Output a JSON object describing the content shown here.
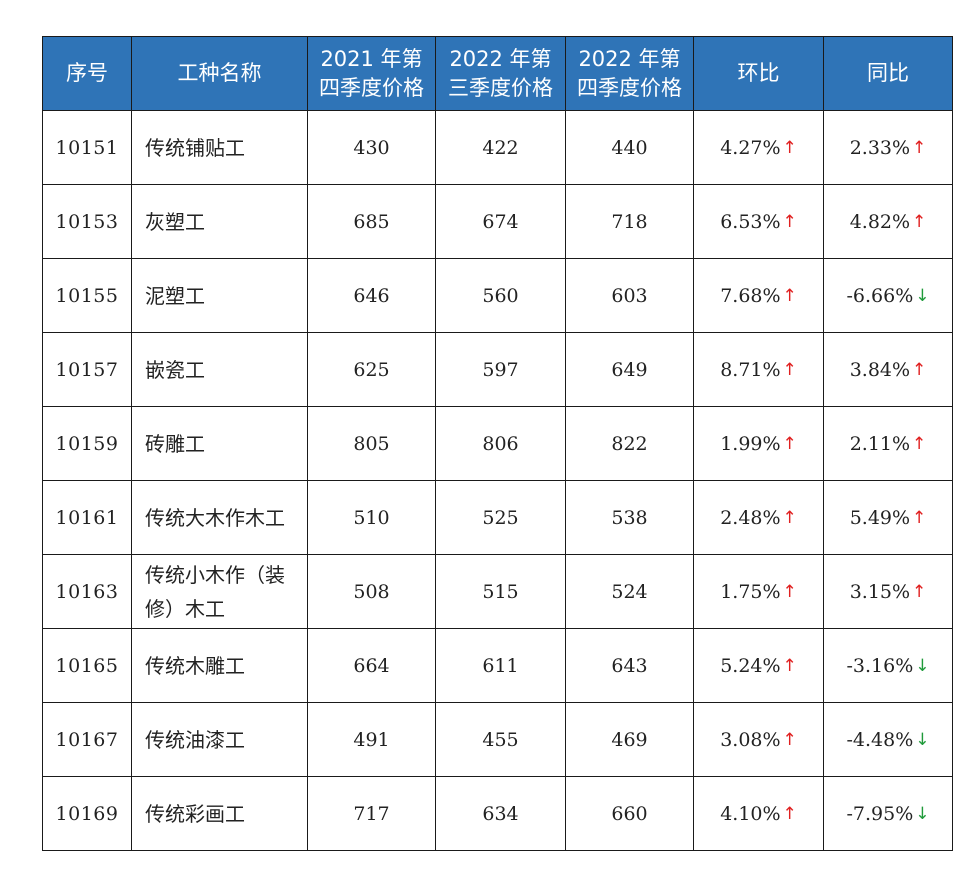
{
  "table": {
    "headers": [
      {
        "line1": "序号",
        "line2": ""
      },
      {
        "line1": "工种名称",
        "line2": ""
      },
      {
        "line1": "2021 年第",
        "line2": "四季度价格"
      },
      {
        "line1": "2022 年第",
        "line2": "三季度价格"
      },
      {
        "line1": "2022 年第",
        "line2": "四季度价格"
      },
      {
        "line1": "环比",
        "line2": ""
      },
      {
        "line1": "同比",
        "line2": ""
      }
    ],
    "rows": [
      {
        "id": "10151",
        "name": "传统铺贴工",
        "p2021q4": "430",
        "p2022q3": "422",
        "p2022q4": "440",
        "qoq": "4.27%",
        "qoq_dir": "up",
        "yoy": "2.33%",
        "yoy_dir": "up"
      },
      {
        "id": "10153",
        "name": "灰塑工",
        "p2021q4": "685",
        "p2022q3": "674",
        "p2022q4": "718",
        "qoq": "6.53%",
        "qoq_dir": "up",
        "yoy": "4.82%",
        "yoy_dir": "up"
      },
      {
        "id": "10155",
        "name": "泥塑工",
        "p2021q4": "646",
        "p2022q3": "560",
        "p2022q4": "603",
        "qoq": "7.68%",
        "qoq_dir": "up",
        "yoy": "-6.66%",
        "yoy_dir": "down"
      },
      {
        "id": "10157",
        "name": "嵌瓷工",
        "p2021q4": "625",
        "p2022q3": "597",
        "p2022q4": "649",
        "qoq": "8.71%",
        "qoq_dir": "up",
        "yoy": "3.84%",
        "yoy_dir": "up"
      },
      {
        "id": "10159",
        "name": "砖雕工",
        "p2021q4": "805",
        "p2022q3": "806",
        "p2022q4": "822",
        "qoq": "1.99%",
        "qoq_dir": "up",
        "yoy": "2.11%",
        "yoy_dir": "up"
      },
      {
        "id": "10161",
        "name": "传统大木作木工",
        "p2021q4": "510",
        "p2022q3": "525",
        "p2022q4": "538",
        "qoq": "2.48%",
        "qoq_dir": "up",
        "yoy": "5.49%",
        "yoy_dir": "up"
      },
      {
        "id": "10163",
        "name": "传统小木作（装修）木工",
        "p2021q4": "508",
        "p2022q3": "515",
        "p2022q4": "524",
        "qoq": "1.75%",
        "qoq_dir": "up",
        "yoy": "3.15%",
        "yoy_dir": "up"
      },
      {
        "id": "10165",
        "name": "传统木雕工",
        "p2021q4": "664",
        "p2022q3": "611",
        "p2022q4": "643",
        "qoq": "5.24%",
        "qoq_dir": "up",
        "yoy": "-3.16%",
        "yoy_dir": "down"
      },
      {
        "id": "10167",
        "name": "传统油漆工",
        "p2021q4": "491",
        "p2022q3": "455",
        "p2022q4": "469",
        "qoq": "3.08%",
        "qoq_dir": "up",
        "yoy": "-4.48%",
        "yoy_dir": "down"
      },
      {
        "id": "10169",
        "name": "传统彩画工",
        "p2021q4": "717",
        "p2022q3": "634",
        "p2022q4": "660",
        "qoq": "4.10%",
        "qoq_dir": "up",
        "yoy": "-7.95%",
        "yoy_dir": "down"
      }
    ]
  },
  "arrows": {
    "up": "↑",
    "down": "↓"
  },
  "colors": {
    "header_bg": "#2f74b7",
    "header_text": "#ffffff",
    "up_arrow": "#e02020",
    "down_arrow": "#1f9a3a",
    "border": "#1a1a1a"
  }
}
